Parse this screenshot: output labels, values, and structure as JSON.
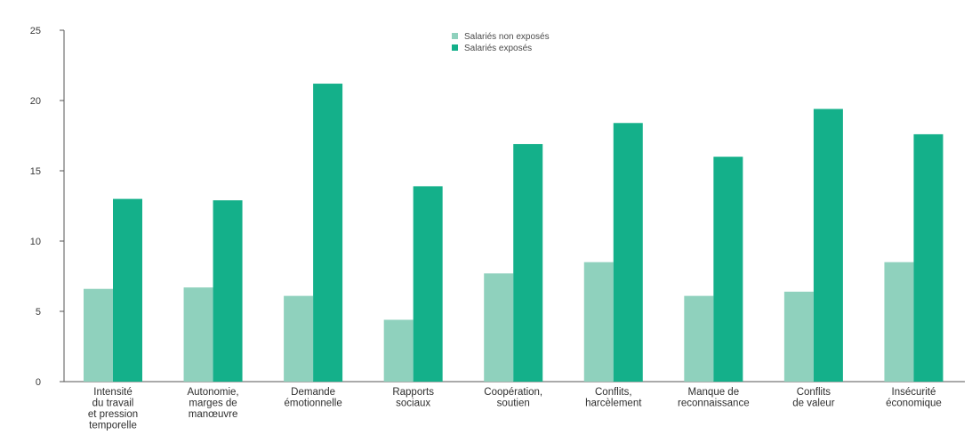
{
  "chart_data": {
    "type": "bar",
    "categories": [
      "Intensité du travail et pression temporelle",
      "Autonomie, marges de manœuvre",
      "Demande émotionnelle",
      "Rapports sociaux",
      "Coopération, soutien",
      "Conflits, harcèlement",
      "Manque de reconnaissance",
      "Conflits de valeur",
      "Insécurité économique"
    ],
    "category_lines": [
      [
        "Intensité",
        "du travail",
        "et pression",
        "temporelle"
      ],
      [
        "Autonomie,",
        "marges de",
        "manœuvre"
      ],
      [
        "Demande",
        "émotionnelle"
      ],
      [
        "Rapports",
        "sociaux"
      ],
      [
        "Coopération,",
        "soutien"
      ],
      [
        "Conflits,",
        "harcèlement"
      ],
      [
        "Manque de",
        "reconnaissance"
      ],
      [
        "Conflits",
        "de valeur"
      ],
      [
        "Insécurité",
        "économique"
      ]
    ],
    "series": [
      {
        "name": "Salariés non exposés",
        "color": "#8fd1bd",
        "values": [
          6.6,
          6.7,
          6.1,
          4.4,
          7.7,
          8.5,
          6.1,
          6.4,
          8.5
        ]
      },
      {
        "name": "Salariés exposés",
        "color": "#14b08a",
        "values": [
          13.0,
          12.9,
          21.2,
          13.9,
          16.9,
          18.4,
          16.0,
          19.4,
          17.6
        ]
      }
    ],
    "title": "",
    "xlabel": "",
    "ylabel": "",
    "ylim": [
      0,
      25
    ],
    "yticks": [
      "0",
      "5",
      "10",
      "15",
      "20",
      "25"
    ],
    "grid": false,
    "legend_position": "top-center"
  }
}
